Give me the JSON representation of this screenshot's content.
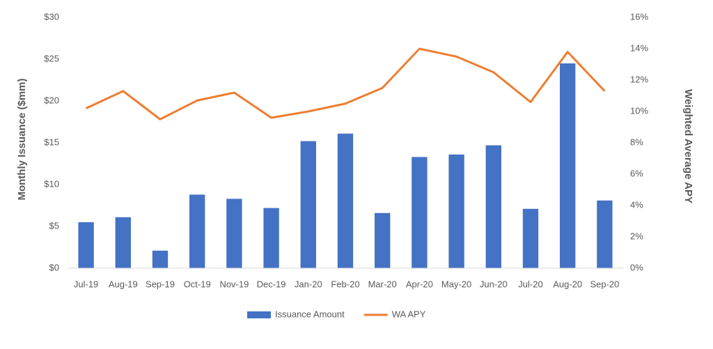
{
  "chart_data": {
    "type": "bar_line",
    "y_label": "Monthly Issuance ($mm)",
    "y2_label": "Weighted Average APY",
    "categories": [
      "Jul-19",
      "Aug-19",
      "Sep-19",
      "Oct-19",
      "Nov-19",
      "Dec-19",
      "Jan-20",
      "Feb-20",
      "Mar-20",
      "Apr-20",
      "May-20",
      "Jun-20",
      "Jul-20",
      "Aug-20",
      "Sep-20"
    ],
    "series": [
      {
        "name": "Issuance Amount",
        "type": "bar",
        "color": "#4472c4",
        "values": [
          5.5,
          6.1,
          2.1,
          8.8,
          8.3,
          7.2,
          15.2,
          16.1,
          6.6,
          13.3,
          13.6,
          14.7,
          7.1,
          24.5,
          8.1
        ]
      },
      {
        "name": "WA APY",
        "type": "line",
        "axis": "y2",
        "color": "#ed7d31",
        "values": [
          10.2,
          11.3,
          9.5,
          10.7,
          11.2,
          9.6,
          10.0,
          10.5,
          11.5,
          14.0,
          13.5,
          12.5,
          10.6,
          13.8,
          11.3
        ]
      }
    ],
    "ylim": [
      0,
      30
    ],
    "yticks": [
      {
        "value": 0,
        "label": "$0"
      },
      {
        "value": 5,
        "label": "$5"
      },
      {
        "value": 10,
        "label": "$10"
      },
      {
        "value": 15,
        "label": "$15"
      },
      {
        "value": 20,
        "label": "$20"
      },
      {
        "value": 25,
        "label": "$25"
      },
      {
        "value": 30,
        "label": "$30"
      }
    ],
    "y2lim": [
      0,
      16
    ],
    "y2ticks": [
      {
        "value": 0,
        "label": "0%"
      },
      {
        "value": 2,
        "label": "2%"
      },
      {
        "value": 4,
        "label": "4%"
      },
      {
        "value": 6,
        "label": "6%"
      },
      {
        "value": 8,
        "label": "8%"
      },
      {
        "value": 10,
        "label": "10%"
      },
      {
        "value": 12,
        "label": "12%"
      },
      {
        "value": 14,
        "label": "14%"
      },
      {
        "value": 16,
        "label": "16%"
      }
    ],
    "legend": "bottom"
  }
}
